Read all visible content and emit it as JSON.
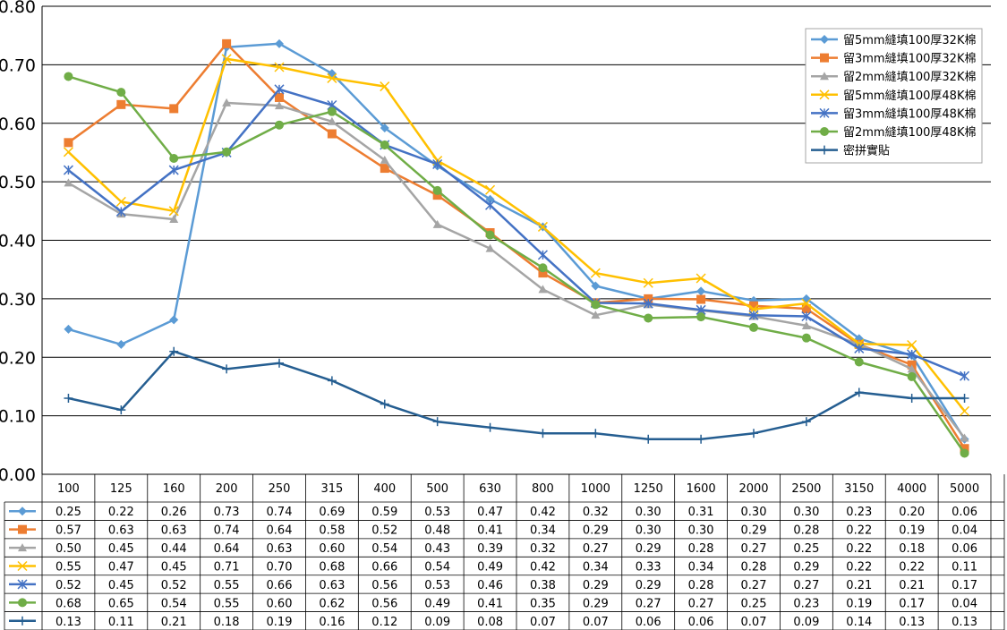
{
  "chart_data": {
    "type": "line",
    "title": "",
    "xlabel": "",
    "ylabel": "",
    "ylim": [
      0,
      0.8
    ],
    "yticks": [
      "0.00",
      "0.10",
      "0.20",
      "0.30",
      "0.40",
      "0.50",
      "0.60",
      "0.70",
      "0.80"
    ],
    "grid": true,
    "legend_position": "top-right",
    "categories": [
      "100",
      "125",
      "160",
      "200",
      "250",
      "315",
      "400",
      "500",
      "630",
      "800",
      "1000",
      "1250",
      "1600",
      "2000",
      "2500",
      "3150",
      "4000",
      "5000"
    ],
    "series": [
      {
        "name": "留5mm縫填100厚32K棉",
        "color": "#5b9bd5",
        "marker": "diamond",
        "values": [
          0.248,
          0.222,
          0.264,
          0.73,
          0.736,
          0.685,
          0.592,
          0.527,
          0.47,
          0.423,
          0.322,
          0.3,
          0.313,
          0.297,
          0.3,
          0.232,
          0.203,
          0.06
        ],
        "labels": [
          "0.25",
          "0.22",
          "0.26",
          "0.73",
          "0.74",
          "0.69",
          "0.59",
          "0.53",
          "0.47",
          "0.42",
          "0.32",
          "0.30",
          "0.31",
          "0.30",
          "0.30",
          "0.23",
          "0.20",
          "0.06"
        ]
      },
      {
        "name": "留3mm縫填100厚32K棉",
        "color": "#ed7d31",
        "marker": "square",
        "values": [
          0.567,
          0.632,
          0.625,
          0.736,
          0.644,
          0.582,
          0.523,
          0.477,
          0.413,
          0.344,
          0.293,
          0.3,
          0.299,
          0.288,
          0.283,
          0.222,
          0.187,
          0.044
        ],
        "labels": [
          "0.57",
          "0.63",
          "0.63",
          "0.74",
          "0.64",
          "0.58",
          "0.52",
          "0.48",
          "0.41",
          "0.34",
          "0.29",
          "0.30",
          "0.30",
          "0.29",
          "0.28",
          "0.22",
          "0.19",
          "0.04"
        ]
      },
      {
        "name": "留2mm縫填100厚32K棉",
        "color": "#a5a5a5",
        "marker": "triangle",
        "values": [
          0.498,
          0.445,
          0.436,
          0.635,
          0.63,
          0.603,
          0.537,
          0.427,
          0.386,
          0.316,
          0.272,
          0.29,
          0.28,
          0.27,
          0.254,
          0.222,
          0.18,
          0.062
        ],
        "labels": [
          "0.50",
          "0.45",
          "0.44",
          "0.64",
          "0.63",
          "0.60",
          "0.54",
          "0.43",
          "0.39",
          "0.32",
          "0.27",
          "0.29",
          "0.28",
          "0.27",
          "0.25",
          "0.22",
          "0.18",
          "0.06"
        ]
      },
      {
        "name": "留5mm縫填100厚48K棉",
        "color": "#ffc000",
        "marker": "x",
        "values": [
          0.551,
          0.466,
          0.45,
          0.71,
          0.696,
          0.677,
          0.663,
          0.536,
          0.486,
          0.423,
          0.344,
          0.327,
          0.335,
          0.282,
          0.292,
          0.223,
          0.221,
          0.108
        ],
        "labels": [
          "0.55",
          "0.47",
          "0.45",
          "0.71",
          "0.70",
          "0.68",
          "0.66",
          "0.54",
          "0.49",
          "0.42",
          "0.34",
          "0.33",
          "0.34",
          "0.28",
          "0.29",
          "0.22",
          "0.22",
          "0.11"
        ]
      },
      {
        "name": "留3mm縫填100厚48K棉",
        "color": "#4472c4",
        "marker": "star",
        "values": [
          0.52,
          0.449,
          0.52,
          0.55,
          0.658,
          0.631,
          0.563,
          0.53,
          0.46,
          0.375,
          0.293,
          0.292,
          0.281,
          0.272,
          0.27,
          0.215,
          0.205,
          0.168
        ],
        "labels": [
          "0.52",
          "0.45",
          "0.52",
          "0.55",
          "0.66",
          "0.63",
          "0.56",
          "0.53",
          "0.46",
          "0.38",
          "0.29",
          "0.29",
          "0.28",
          "0.27",
          "0.27",
          "0.21",
          "0.21",
          "0.17"
        ]
      },
      {
        "name": "留2mm縫填100厚48K棉",
        "color": "#70ad47",
        "marker": "circle",
        "values": [
          0.68,
          0.653,
          0.54,
          0.551,
          0.597,
          0.62,
          0.563,
          0.485,
          0.409,
          0.353,
          0.29,
          0.267,
          0.269,
          0.251,
          0.233,
          0.192,
          0.167,
          0.036
        ],
        "labels": [
          "0.68",
          "0.65",
          "0.54",
          "0.55",
          "0.60",
          "0.62",
          "0.56",
          "0.49",
          "0.41",
          "0.35",
          "0.29",
          "0.27",
          "0.27",
          "0.25",
          "0.23",
          "0.19",
          "0.17",
          "0.04"
        ]
      },
      {
        "name": "密拼實貼",
        "color": "#255e91",
        "marker": "plus",
        "values": [
          0.13,
          0.11,
          0.21,
          0.18,
          0.19,
          0.16,
          0.12,
          0.09,
          0.08,
          0.07,
          0.07,
          0.06,
          0.06,
          0.07,
          0.09,
          0.14,
          0.13,
          0.13
        ],
        "labels": [
          "0.13",
          "0.11",
          "0.21",
          "0.18",
          "0.19",
          "0.16",
          "0.12",
          "0.09",
          "0.08",
          "0.07",
          "0.07",
          "0.06",
          "0.06",
          "0.07",
          "0.09",
          "0.14",
          "0.13",
          "0.13"
        ]
      }
    ]
  }
}
